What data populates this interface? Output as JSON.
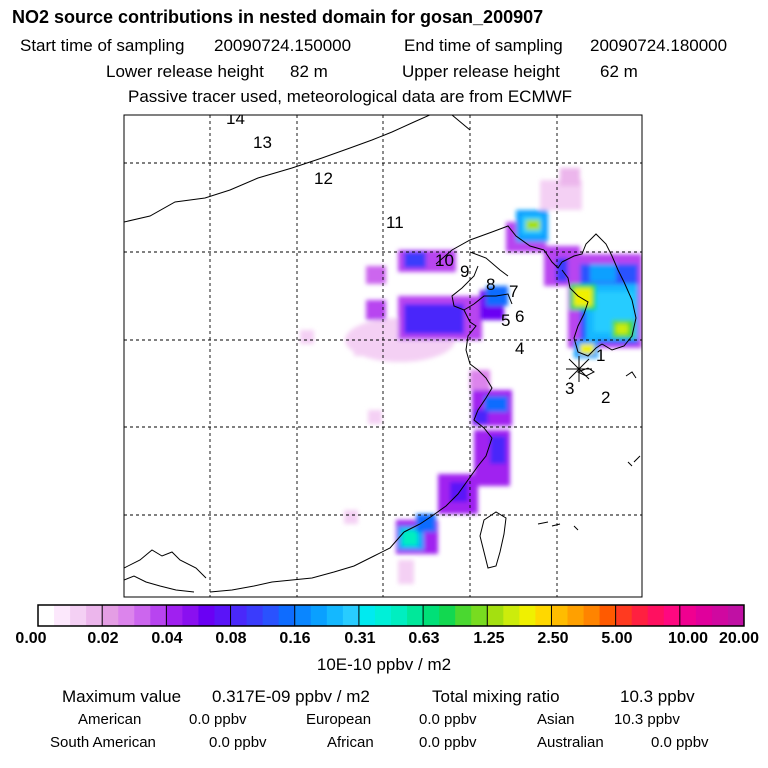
{
  "header": {
    "title": "NO2 source contributions in nested domain for gosan_200907",
    "start_label": "Start time of sampling",
    "start_value": "20090724.150000",
    "end_label": "End time of sampling",
    "end_value": "20090724.180000",
    "lower_label": "Lower release height",
    "lower_value": "82 m",
    "upper_label": "Upper release height",
    "upper_value": "62 m",
    "note": "Passive tracer used, meteorological data are from ECMWF"
  },
  "map": {
    "trajectory_labels": [
      "1",
      "2",
      "3",
      "4",
      "5",
      "6",
      "7",
      "8",
      "9",
      "10",
      "11",
      "12",
      "13",
      "14"
    ],
    "receptor_marker": "asterisk-receptor"
  },
  "colorbar": {
    "ticks": [
      "0.00",
      "0.02",
      "0.04",
      "0.08",
      "0.16",
      "0.31",
      "0.63",
      "1.25",
      "2.50",
      "5.00",
      "10.00",
      "20.00"
    ],
    "colors": [
      [
        "#ffffff",
        "#fce8fc",
        "#f4d0f4",
        "#ecb6ec",
        "#e49ee4",
        "#dc84ec",
        "#cc66ee",
        "#b844f0",
        "#a020f0",
        "#8a10f0"
      ],
      [
        "#6a00f4",
        "#5a14f8",
        "#4a28fa",
        "#3a3cfc",
        "#2a52fe",
        "#0e6cff",
        "#0a86ff",
        "#0aa0ff",
        "#14b8ff",
        "#28ccff"
      ],
      [
        "#00eaf0",
        "#00f0d8",
        "#00eec0",
        "#00e89a",
        "#00e078",
        "#12d850",
        "#4ad830",
        "#78dc20",
        "#a4e010",
        "#ccec0c"
      ],
      [
        "#f0f000",
        "#ffd800",
        "#ffbc00",
        "#ffa000",
        "#ff8400",
        "#ff5a00",
        "#ff3a20",
        "#ff2040",
        "#ff1060",
        "#ff0880"
      ],
      [
        "#f00090",
        "#e0009c",
        "#d008a0",
        "#c010a4",
        "#b014a6",
        "#a014a4",
        "#8e10a0",
        "#7c0c98",
        "#6a0890",
        "#560884"
      ]
    ],
    "unit": "10E-10 ppbv / m2"
  },
  "summary": {
    "max_label": "Maximum value",
    "max_value": "0.317E-09 ppbv / m2",
    "total_label": "Total mixing ratio",
    "total_value": "10.3 ppbv",
    "regions": [
      {
        "label": "American",
        "value": "0.0 ppbv"
      },
      {
        "label": "European",
        "value": "0.0 ppbv"
      },
      {
        "label": "Asian",
        "value": "10.3 ppbv"
      },
      {
        "label": "South American",
        "value": "0.0 ppbv"
      },
      {
        "label": "African",
        "value": "0.0 ppbv"
      },
      {
        "label": "Australian",
        "value": "0.0 ppbv"
      }
    ]
  }
}
